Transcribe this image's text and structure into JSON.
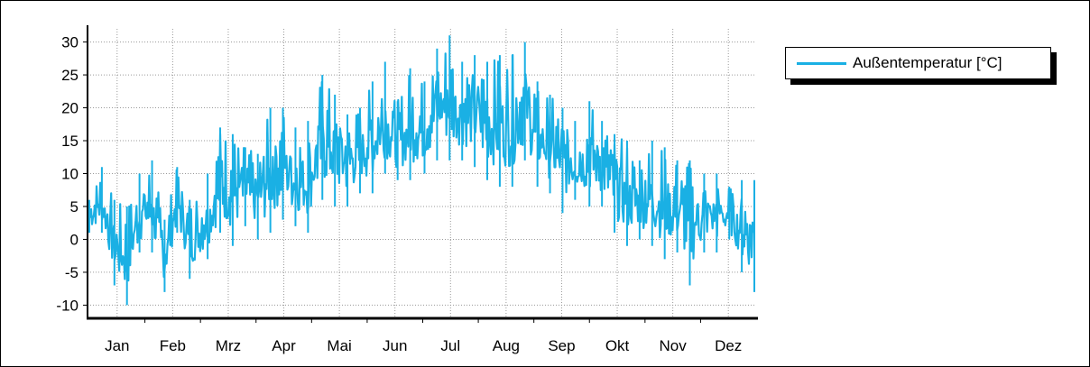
{
  "chart_data": {
    "type": "line",
    "title": "",
    "xlabel": "",
    "ylabel": "",
    "ylim": [
      -12,
      32
    ],
    "yticks": [
      -10,
      -5,
      0,
      5,
      10,
      15,
      20,
      25,
      30
    ],
    "months": [
      "Jan",
      "Feb",
      "Mrz",
      "Apr",
      "Mai",
      "Jun",
      "Jul",
      "Aug",
      "Sep",
      "Okt",
      "Nov",
      "Dez"
    ],
    "grid": true,
    "legend_position": "top-right",
    "series": [
      {
        "name": "Außentemperatur [°C]",
        "color": "#1ab0e4",
        "x": [
          "Jan 1",
          "Jan 8",
          "Jan 15",
          "Jan 22",
          "Jan 29",
          "Feb 5",
          "Feb 12",
          "Feb 19",
          "Feb 26",
          "Mrz 5",
          "Mrz 12",
          "Mrz 19",
          "Mrz 26",
          "Apr 2",
          "Apr 9",
          "Apr 16",
          "Apr 23",
          "Apr 30",
          "Mai 7",
          "Mai 14",
          "Mai 21",
          "Mai 28",
          "Jun 4",
          "Jun 11",
          "Jun 18",
          "Jun 25",
          "Jul 2",
          "Jul 9",
          "Jul 16",
          "Jul 23",
          "Jul 30",
          "Aug 6",
          "Aug 13",
          "Aug 20",
          "Aug 27",
          "Sep 3",
          "Sep 10",
          "Sep 17",
          "Sep 24",
          "Okt 1",
          "Okt 8",
          "Okt 15",
          "Okt 22",
          "Okt 29",
          "Nov 5",
          "Nov 12",
          "Nov 19",
          "Nov 26",
          "Dez 3",
          "Dez 10",
          "Dez 17",
          "Dez 24",
          "Dez 31"
        ],
        "low": [
          1,
          1,
          -7,
          -10,
          -2,
          -2,
          -8,
          1,
          -6,
          -3,
          1,
          -1,
          2,
          0,
          1,
          3,
          2,
          1,
          6,
          5,
          5,
          7,
          7,
          10,
          9,
          9,
          10,
          12,
          12,
          12,
          11,
          9,
          8,
          8,
          12,
          8,
          7,
          4,
          6,
          5,
          5,
          1,
          -1,
          0,
          -1,
          -3,
          -2,
          -7,
          -2,
          -2,
          0,
          -5,
          -8
        ],
        "high": [
          6,
          11,
          6,
          5,
          10,
          12,
          3,
          11,
          6,
          10,
          17,
          16,
          14,
          13,
          20,
          20,
          17,
          18,
          25,
          22,
          19,
          20,
          24,
          27,
          21,
          26,
          24,
          29,
          31,
          27,
          28,
          27,
          28,
          28,
          30,
          24,
          22,
          20,
          18,
          21,
          18,
          16,
          15,
          12,
          15,
          14,
          12,
          12,
          10,
          10,
          8,
          9,
          9
        ]
      }
    ]
  }
}
